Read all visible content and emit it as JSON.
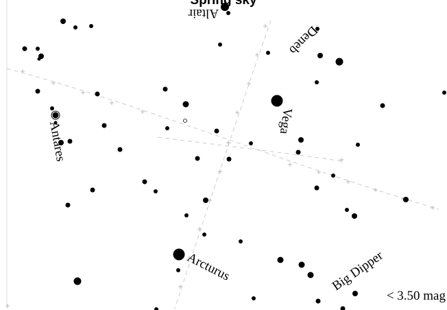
{
  "map": {
    "title": "Spring sky",
    "magnitude_limit": "< 3.50 mag",
    "colors": {
      "stars": "#000000",
      "grid": "#cccccc",
      "background": "#ffffff"
    },
    "labels": {
      "altair": "Altair",
      "deneb": "Deneb",
      "vega": "Vega",
      "antares": "Antares",
      "arcturus": "Arcturus",
      "big_dipper": "Big Dipper"
    }
  }
}
